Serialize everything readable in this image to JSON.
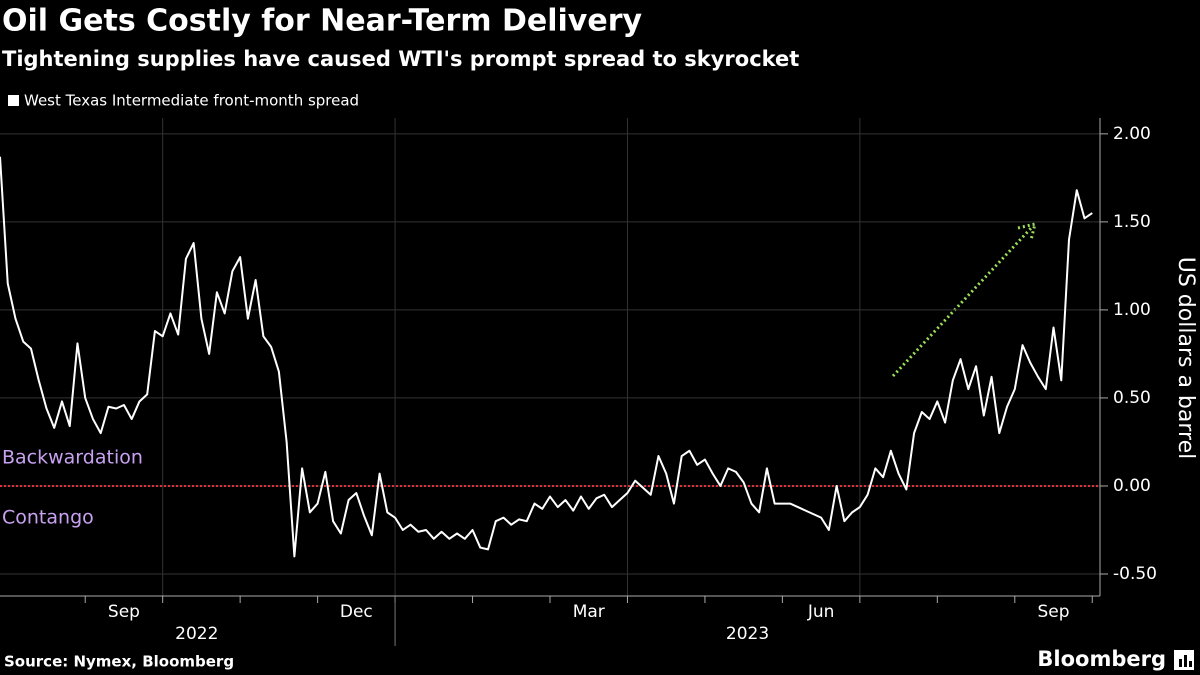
{
  "chart_data": {
    "type": "line",
    "title": "Oil Gets Costly for Near-Term Delivery",
    "subtitle": "Tightening supplies have caused WTI's prompt spread to skyrocket",
    "y_axis_label": "US dollars a barrel",
    "source": "Source: Nymex, Bloomberg",
    "brand": "Bloomberg",
    "annotations": [
      {
        "label": "Backwardation"
      },
      {
        "label": "Contango"
      }
    ],
    "series": [
      {
        "name": "West Texas Intermediate front-month spread",
        "color": "#ffffff",
        "x": [
          6.9,
          7,
          7.1,
          7.2,
          7.3,
          7.4,
          7.5,
          7.6,
          7.7,
          7.8,
          7.9,
          8,
          8.1,
          8.2,
          8.3,
          8.4,
          8.5,
          8.6,
          8.7,
          8.8,
          8.9,
          9,
          9.1,
          9.2,
          9.3,
          9.4,
          9.5,
          9.6,
          9.7,
          9.8,
          9.9,
          10,
          10.1,
          10.2,
          10.3,
          10.4,
          10.5,
          10.6,
          10.7,
          10.8,
          10.9,
          11,
          11.1,
          11.2,
          11.3,
          11.4,
          11.5,
          11.6,
          11.7,
          11.8,
          11.9,
          12,
          12.1,
          12.2,
          12.3,
          12.4,
          12.5,
          12.6,
          12.7,
          12.8,
          12.9,
          13,
          13.1,
          13.2,
          13.3,
          13.4,
          13.5,
          13.6,
          13.7,
          13.8,
          13.9,
          14,
          14.1,
          14.2,
          14.3,
          14.4,
          14.5,
          14.6,
          14.7,
          14.8,
          14.9,
          15,
          15.1,
          15.2,
          15.3,
          15.4,
          15.5,
          15.6,
          15.7,
          15.8,
          15.9,
          16,
          16.1,
          16.2,
          16.3,
          16.4,
          16.5,
          16.6,
          16.7,
          16.8,
          16.9,
          17,
          17.1,
          17.2,
          17.3,
          17.4,
          17.5,
          17.6,
          17.7,
          17.8,
          17.9,
          18,
          18.1,
          18.2,
          18.3,
          18.4,
          18.5,
          18.6,
          18.7,
          18.8,
          18.9,
          19,
          19.1,
          19.2,
          19.3,
          19.4,
          19.5,
          19.6,
          19.7,
          19.8,
          19.9,
          20,
          20.1,
          20.2,
          20.3,
          20.4,
          20.5,
          20.6,
          20.7,
          20.8,
          20.9,
          21
        ],
        "values": [
          1.87,
          1.15,
          0.95,
          0.82,
          0.78,
          0.6,
          0.44,
          0.33,
          0.48,
          0.34,
          0.81,
          0.5,
          0.38,
          0.3,
          0.45,
          0.44,
          0.46,
          0.38,
          0.48,
          0.52,
          0.88,
          0.85,
          0.98,
          0.86,
          1.29,
          1.38,
          0.95,
          0.75,
          1.1,
          0.98,
          1.22,
          1.3,
          0.95,
          1.17,
          0.85,
          0.79,
          0.65,
          0.25,
          -0.4,
          0.1,
          -0.15,
          -0.1,
          0.08,
          -0.2,
          -0.27,
          -0.08,
          -0.04,
          -0.17,
          -0.28,
          0.07,
          -0.15,
          -0.18,
          -0.25,
          -0.22,
          -0.26,
          -0.25,
          -0.3,
          -0.26,
          -0.3,
          -0.27,
          -0.3,
          -0.25,
          -0.35,
          -0.36,
          -0.2,
          -0.18,
          -0.22,
          -0.19,
          -0.2,
          -0.1,
          -0.13,
          -0.06,
          -0.12,
          -0.08,
          -0.14,
          -0.06,
          -0.13,
          -0.07,
          -0.05,
          -0.12,
          -0.08,
          -0.04,
          0.03,
          -0.01,
          -0.05,
          0.17,
          0.07,
          -0.1,
          0.17,
          0.2,
          0.12,
          0.15,
          0.07,
          0,
          0.1,
          0.08,
          0.02,
          -0.1,
          -0.15,
          0.1,
          -0.1,
          -0.1,
          -0.1,
          -0.12,
          -0.14,
          -0.16,
          -0.18,
          -0.25,
          0,
          -0.2,
          -0.15,
          -0.12,
          -0.05,
          0.1,
          0.05,
          0.2,
          0.07,
          -0.02,
          0.3,
          0.42,
          0.38,
          0.48,
          0.36,
          0.6,
          0.72,
          0.55,
          0.68,
          0.4,
          0.62,
          0.3,
          0.45,
          0.55,
          0.8,
          0.7,
          0.62,
          0.55,
          0.9,
          0.6,
          1.4,
          1.68,
          1.52,
          1.55
        ]
      }
    ],
    "xlim": [
      6.9,
      21.1
    ],
    "xticks": [
      {
        "value": 8.5,
        "label": "Sep"
      },
      {
        "value": 11.5,
        "label": "Dec"
      },
      {
        "value": 14.5,
        "label": "Mar"
      },
      {
        "value": 17.5,
        "label": "Jun"
      },
      {
        "value": 20.5,
        "label": "Sep"
      }
    ],
    "xticks_minor": [
      8,
      9,
      10,
      11,
      12,
      13,
      14,
      15,
      16,
      17,
      18,
      19,
      20,
      21
    ],
    "xgrid": [
      9,
      12,
      15,
      18
    ],
    "year_labels": [
      {
        "value": 9.44,
        "label": "2022"
      },
      {
        "value": 16.55,
        "label": "2023"
      }
    ],
    "year_divider": 12,
    "ylim": [
      -0.625,
      2.09
    ],
    "yticks": [
      {
        "value": -0.5,
        "label": "-0.50"
      },
      {
        "value": 0,
        "label": "0.00"
      },
      {
        "value": 0.5,
        "label": "0.50"
      },
      {
        "value": 1,
        "label": "1.00"
      },
      {
        "value": 1.5,
        "label": "1.50"
      },
      {
        "value": 2,
        "label": "2.00"
      }
    ],
    "reference_line": 0,
    "reference_color": "#e0303a",
    "annotation_color": "#c8a2f0",
    "arrow_color": "#9be05a",
    "grid": true
  }
}
